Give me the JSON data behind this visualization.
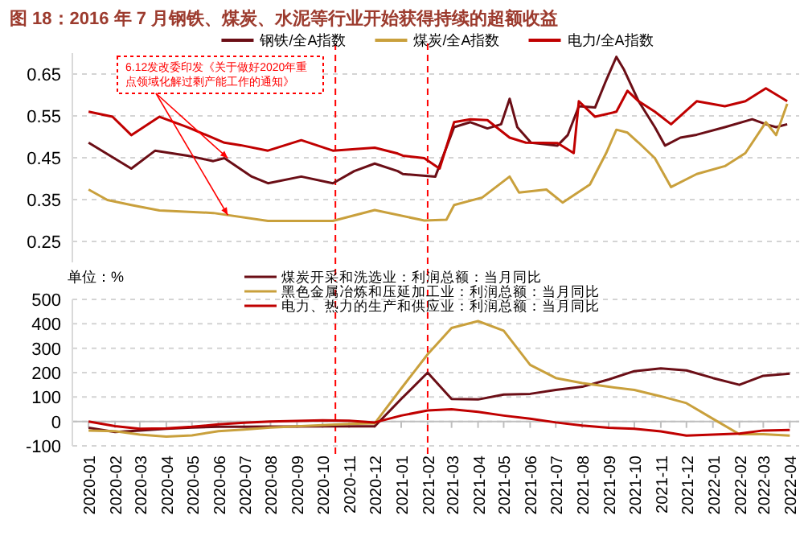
{
  "chart_data": [
    {
      "type": "line",
      "title": "图 18：2016 年 7 月钢铁、煤炭、水泥等行业开始获得持续的超额收益",
      "xlim": [
        "2019-12-13",
        "2022-04-12"
      ],
      "ylim": [
        0.2,
        0.7
      ],
      "yticks": [
        0.25,
        0.35,
        0.45,
        0.55,
        0.65
      ],
      "grid": "y",
      "legend": "top",
      "tick_labels": "y",
      "annotations": [
        {
          "text": "6.12发改委印发《关于做好2020年重点领域化解过剩产能工作的通知》",
          "x": "2020-06-12",
          "y": 0.449
        }
      ],
      "ref_lines": [
        {
          "axis": "x",
          "value": "2020-10-16",
          "color": "#ff0000",
          "line_style": "dashed"
        },
        {
          "axis": "x",
          "value": "2021-02-01",
          "color": "#ff0000",
          "line_style": "dashed"
        }
      ],
      "series": [
        {
          "name": "钢铁/全A指数",
          "color": "#6b0e16",
          "x": [
            "2020-01-01",
            "2020-02-20",
            "2020-03-19",
            "2020-04-26",
            "2020-05-26",
            "2020-06-08",
            "2020-07-10",
            "2020-07-29",
            "2020-09-06",
            "2020-10-13",
            "2020-11-07",
            "2020-12-01",
            "2020-12-28",
            "2021-01-03",
            "2021-02-10",
            "2021-03-04",
            "2021-03-23",
            "2021-04-12",
            "2021-04-28",
            "2021-05-08",
            "2021-05-17",
            "2021-06-02",
            "2021-07-03",
            "2021-07-15",
            "2021-07-28",
            "2021-08-16",
            "2021-08-29",
            "2021-09-10",
            "2021-09-19",
            "2021-10-06",
            "2021-10-25",
            "2021-11-06",
            "2021-11-24",
            "2021-12-13",
            "2022-01-15",
            "2022-02-16",
            "2022-03-04",
            "2022-03-16",
            "2022-03-29"
          ],
          "values": [
            0.486,
            0.424,
            0.467,
            0.455,
            0.442,
            0.449,
            0.405,
            0.389,
            0.405,
            0.389,
            0.418,
            0.436,
            0.418,
            0.411,
            0.405,
            0.523,
            0.535,
            0.52,
            0.53,
            0.591,
            0.523,
            0.486,
            0.479,
            0.504,
            0.573,
            0.57,
            0.635,
            0.691,
            0.66,
            0.585,
            0.523,
            0.479,
            0.498,
            0.505,
            0.523,
            0.542,
            0.53,
            0.523,
            0.53
          ]
        },
        {
          "name": "煤炭/全A指数",
          "color": "#c9a03c",
          "x": [
            "2020-01-01",
            "2020-01-23",
            "2020-02-20",
            "2020-03-24",
            "2020-05-26",
            "2020-07-29",
            "2020-10-13",
            "2020-12-01",
            "2021-01-28",
            "2021-02-23",
            "2021-03-04",
            "2021-04-06",
            "2021-05-08",
            "2021-05-19",
            "2021-06-20",
            "2021-07-09",
            "2021-08-10",
            "2021-08-29",
            "2021-09-10",
            "2021-09-23",
            "2021-10-06",
            "2021-10-25",
            "2021-11-13",
            "2021-12-13",
            "2022-01-15",
            "2022-02-08",
            "2022-03-04",
            "2022-03-16",
            "2022-03-29"
          ],
          "values": [
            0.374,
            0.349,
            0.337,
            0.324,
            0.318,
            0.299,
            0.299,
            0.325,
            0.3,
            0.302,
            0.337,
            0.355,
            0.405,
            0.367,
            0.374,
            0.343,
            0.386,
            0.461,
            0.517,
            0.51,
            0.486,
            0.449,
            0.38,
            0.411,
            0.43,
            0.461,
            0.535,
            0.504,
            0.579
          ]
        },
        {
          "name": "电力/全A指数",
          "color": "#c00000",
          "x": [
            "2020-01-01",
            "2020-01-29",
            "2020-02-20",
            "2020-03-24",
            "2020-04-26",
            "2020-06-08",
            "2020-06-27",
            "2020-07-29",
            "2020-09-06",
            "2020-10-13",
            "2020-12-01",
            "2020-12-28",
            "2021-01-03",
            "2021-01-28",
            "2021-02-15",
            "2021-03-04",
            "2021-03-23",
            "2021-04-12",
            "2021-05-08",
            "2021-05-27",
            "2021-07-03",
            "2021-07-22",
            "2021-07-28",
            "2021-08-16",
            "2021-09-10",
            "2021-09-23",
            "2021-10-06",
            "2021-10-25",
            "2021-11-13",
            "2021-12-13",
            "2022-01-15",
            "2022-02-08",
            "2022-03-04",
            "2022-03-29"
          ],
          "values": [
            0.56,
            0.548,
            0.504,
            0.548,
            0.523,
            0.486,
            0.48,
            0.467,
            0.492,
            0.467,
            0.474,
            0.46,
            0.455,
            0.449,
            0.424,
            0.535,
            0.542,
            0.54,
            0.498,
            0.486,
            0.485,
            0.461,
            0.585,
            0.548,
            0.56,
            0.61,
            0.585,
            0.56,
            0.53,
            0.585,
            0.573,
            0.585,
            0.616,
            0.585
          ]
        }
      ]
    },
    {
      "type": "line",
      "ylabel": "单位：%",
      "xlim": [
        "2019-12-13",
        "2022-04-12"
      ],
      "ylim": [
        -100,
        500
      ],
      "yticks": [
        -100,
        0,
        100,
        200,
        300,
        400,
        500
      ],
      "grid": "y",
      "legend": "top",
      "xticks": [
        {
          "value": "2020-01",
          "label": "2020-01"
        },
        {
          "value": "2020-02",
          "label": "2020-02"
        },
        {
          "value": "2020-03",
          "label": "2020-03"
        },
        {
          "value": "2020-04",
          "label": "2020-04"
        },
        {
          "value": "2020-05",
          "label": "2020-05"
        },
        {
          "value": "2020-06",
          "label": "2020-06"
        },
        {
          "value": "2020-07",
          "label": "2020-07"
        },
        {
          "value": "2020-08",
          "label": "2020-08"
        },
        {
          "value": "2020-09",
          "label": "2020-09"
        },
        {
          "value": "2020-10",
          "label": "2020-10"
        },
        {
          "value": "2020-11",
          "label": "2020-11"
        },
        {
          "value": "2020-12",
          "label": "2020-12"
        },
        {
          "value": "2021-01",
          "label": "2021-01"
        },
        {
          "value": "2021-02",
          "label": "2021-02"
        },
        {
          "value": "2021-03",
          "label": "2021-03"
        },
        {
          "value": "2021-04",
          "label": "2021-04"
        },
        {
          "value": "2021-05",
          "label": "2021-05"
        },
        {
          "value": "2021-06",
          "label": "2021-06"
        },
        {
          "value": "2021-07",
          "label": "2021-07"
        },
        {
          "value": "2021-08",
          "label": "2021-08"
        },
        {
          "value": "2021-09",
          "label": "2021-09"
        },
        {
          "value": "2021-10",
          "label": "2021-10"
        },
        {
          "value": "2021-11",
          "label": "2021-11"
        },
        {
          "value": "2021-12",
          "label": "2021-12"
        },
        {
          "value": "2022-01",
          "label": "2022-01"
        },
        {
          "value": "2022-02",
          "label": "2022-02"
        },
        {
          "value": "2022-03",
          "label": "2022-03"
        },
        {
          "value": "2022-04",
          "label": "2022-04"
        }
      ],
      "x": [
        "2020-01",
        "2020-02",
        "2020-03",
        "2020-04",
        "2020-05",
        "2020-06",
        "2020-07",
        "2020-08",
        "2020-09",
        "2020-10",
        "2020-11",
        "2020-12",
        "2021-01",
        "2021-02",
        "2021-03",
        "2021-04",
        "2021-05",
        "2021-06",
        "2021-07",
        "2021-08",
        "2021-09",
        "2021-10",
        "2021-11",
        "2021-12",
        "2022-01",
        "2022-02",
        "2022-03",
        "2022-04"
      ],
      "ref_lines": [
        {
          "axis": "x",
          "value": "2020-10-16",
          "color": "#ff0000",
          "line_style": "dashed"
        },
        {
          "axis": "x",
          "value": "2021-02-01",
          "color": "#ff0000",
          "line_style": "dashed"
        }
      ],
      "series": [
        {
          "name": "煤炭开采和洗选业：利润总额：当月同比",
          "color": "#6b0e16",
          "values": [
            -26,
            -43,
            -37,
            -30,
            -25,
            -22,
            -22,
            -21,
            -21,
            -20,
            -20,
            -20,
            92,
            200,
            92,
            90,
            110,
            113,
            129,
            142,
            172,
            206,
            217,
            209,
            178,
            150,
            187,
            196
          ]
        },
        {
          "name": "黑色金属冶炼和压延加工业：利润总额：当月同比",
          "color": "#c9a03c",
          "values": [
            -37,
            -40,
            -54,
            -62,
            -57,
            -40,
            -33,
            -25,
            -20,
            -15,
            -10,
            -8,
            135,
            275,
            383,
            411,
            372,
            232,
            178,
            157,
            142,
            129,
            103,
            75,
            11,
            -52,
            -52,
            -58
          ]
        },
        {
          "name": "电力、热力的生产和供应业：利润总额：当月同比",
          "color": "#c00000",
          "values": [
            0,
            -19,
            -30,
            -28,
            -22,
            -12,
            -5,
            0,
            2,
            5,
            3,
            -4,
            24,
            45,
            50,
            39,
            24,
            11,
            -4,
            -17,
            -26,
            -30,
            -41,
            -58,
            -54,
            -50,
            -37,
            -35
          ]
        }
      ]
    }
  ]
}
